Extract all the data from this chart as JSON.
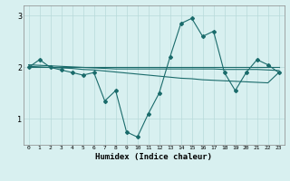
{
  "x": [
    0,
    1,
    2,
    3,
    4,
    5,
    6,
    7,
    8,
    9,
    10,
    11,
    12,
    13,
    14,
    15,
    16,
    17,
    18,
    19,
    20,
    21,
    22,
    23
  ],
  "y_main": [
    2.0,
    2.15,
    2.0,
    1.95,
    1.9,
    1.85,
    1.9,
    1.35,
    1.55,
    0.75,
    0.65,
    1.1,
    1.5,
    2.2,
    2.85,
    2.95,
    2.6,
    2.7,
    1.9,
    1.55,
    1.9,
    2.15,
    2.05,
    1.9
  ],
  "y_flat1": [
    2.0,
    2.0,
    2.0,
    2.0,
    2.0,
    2.0,
    2.0,
    2.0,
    2.0,
    2.0,
    2.0,
    2.0,
    2.0,
    2.0,
    2.0,
    2.0,
    2.0,
    2.0,
    2.0,
    2.0,
    2.0,
    2.0,
    2.0,
    2.0
  ],
  "y_trend1": [
    2.05,
    2.04,
    2.03,
    2.02,
    2.01,
    2.0,
    1.99,
    1.98,
    1.97,
    1.97,
    1.97,
    1.97,
    1.97,
    1.97,
    1.97,
    1.97,
    1.97,
    1.97,
    1.96,
    1.96,
    1.96,
    1.96,
    1.95,
    1.94
  ],
  "y_trend2": [
    2.02,
    2.01,
    2.0,
    1.99,
    1.98,
    1.96,
    1.95,
    1.93,
    1.91,
    1.89,
    1.87,
    1.85,
    1.83,
    1.81,
    1.79,
    1.78,
    1.76,
    1.75,
    1.74,
    1.73,
    1.72,
    1.71,
    1.7,
    1.9
  ],
  "color_main": "#1a6b6b",
  "color_flat": "#1a6b6b",
  "color_trend1": "#1a6b6b",
  "color_trend2": "#1a6b6b",
  "bg_color": "#d8f0f0",
  "grid_color": "#b8dada",
  "xlabel": "Humidex (Indice chaleur)",
  "xlim": [
    -0.5,
    23.5
  ],
  "ylim": [
    0.5,
    3.2
  ],
  "yticks": [
    1,
    2,
    3
  ],
  "xticks": [
    0,
    1,
    2,
    3,
    4,
    5,
    6,
    7,
    8,
    9,
    10,
    11,
    12,
    13,
    14,
    15,
    16,
    17,
    18,
    19,
    20,
    21,
    22,
    23
  ]
}
